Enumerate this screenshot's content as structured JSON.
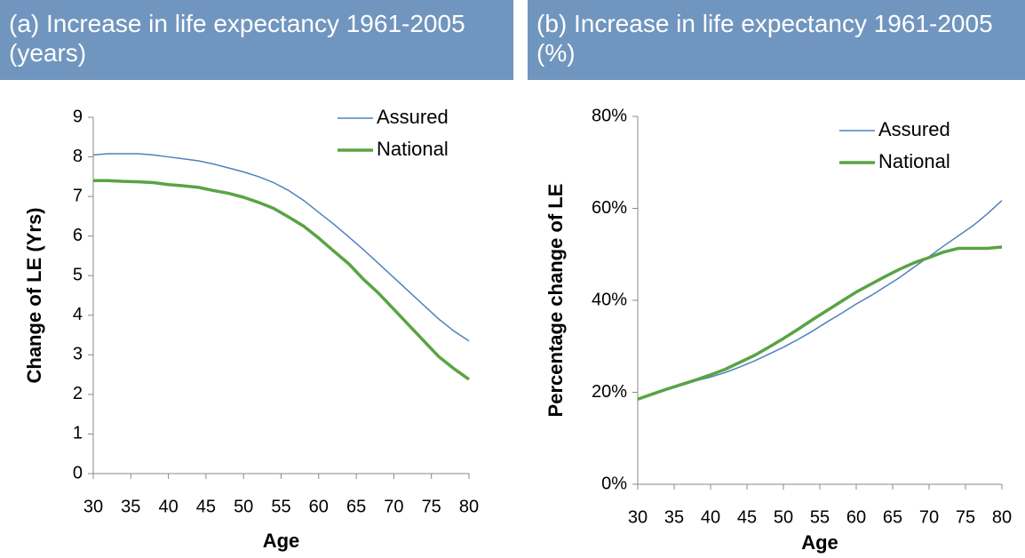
{
  "chart_data": [
    {
      "type": "line",
      "title": "(a) Increase in life expectancy 1961-2005 (years)",
      "x_label": "Age",
      "y_label": "Change of LE (Yrs)",
      "x": [
        30,
        32,
        34,
        36,
        38,
        40,
        42,
        44,
        46,
        48,
        50,
        52,
        54,
        56,
        58,
        60,
        62,
        64,
        66,
        68,
        70,
        72,
        74,
        76,
        78,
        80
      ],
      "series": [
        {
          "name": "Assured",
          "color": "#4f81bd",
          "values": [
            8.05,
            8.08,
            8.08,
            8.08,
            8.05,
            8.0,
            7.95,
            7.9,
            7.82,
            7.72,
            7.62,
            7.5,
            7.35,
            7.15,
            6.9,
            6.6,
            6.3,
            5.98,
            5.65,
            5.3,
            4.95,
            4.6,
            4.25,
            3.9,
            3.6,
            3.35
          ]
        },
        {
          "name": "National",
          "color": "#5aa344",
          "values": [
            7.4,
            7.4,
            7.38,
            7.37,
            7.35,
            7.3,
            7.27,
            7.23,
            7.15,
            7.08,
            6.98,
            6.85,
            6.7,
            6.48,
            6.25,
            5.95,
            5.62,
            5.3,
            4.9,
            4.55,
            4.15,
            3.75,
            3.35,
            2.95,
            2.65,
            2.38
          ]
        }
      ],
      "xlim": [
        30,
        80
      ],
      "xticks": [
        30,
        35,
        40,
        45,
        50,
        55,
        60,
        65,
        70,
        75,
        80
      ],
      "ylim": [
        0,
        9
      ],
      "yticks": [
        0,
        1,
        2,
        3,
        4,
        5,
        6,
        7,
        8,
        9
      ],
      "grid": false,
      "legend": "upper right"
    },
    {
      "type": "line",
      "title": "(b) Increase in life expectancy 1961-2005 (%)",
      "x_label": "Age",
      "y_label": "Percentage change of LE",
      "x": [
        30,
        32,
        34,
        36,
        38,
        40,
        42,
        44,
        46,
        48,
        50,
        52,
        54,
        56,
        58,
        60,
        62,
        64,
        66,
        68,
        70,
        72,
        74,
        76,
        78,
        80
      ],
      "series": [
        {
          "name": "Assured",
          "color": "#4f81bd",
          "values": [
            18.5,
            19.5,
            20.5,
            21.5,
            22.5,
            23.3,
            24.3,
            25.5,
            26.8,
            28.3,
            29.8,
            31.5,
            33.3,
            35.3,
            37.2,
            39.2,
            41.0,
            43.0,
            45.0,
            47.3,
            49.5,
            51.8,
            54.0,
            56.2,
            58.8,
            61.7
          ]
        },
        {
          "name": "National",
          "color": "#5aa344",
          "values": [
            18.5,
            19.6,
            20.7,
            21.7,
            22.7,
            23.8,
            25.0,
            26.5,
            28.0,
            29.8,
            31.7,
            33.7,
            35.8,
            37.8,
            39.8,
            41.8,
            43.5,
            45.2,
            46.8,
            48.2,
            49.3,
            50.5,
            51.3,
            51.3,
            51.3,
            51.6
          ]
        }
      ],
      "xlim": [
        30,
        80
      ],
      "xticks": [
        30,
        35,
        40,
        45,
        50,
        55,
        60,
        65,
        70,
        75,
        80
      ],
      "ylim": [
        0,
        80
      ],
      "yticks": [
        {
          "value": 0,
          "label": "0%"
        },
        {
          "value": 20,
          "label": "20%"
        },
        {
          "value": 40,
          "label": "40%"
        },
        {
          "value": 60,
          "label": "60%"
        },
        {
          "value": 80,
          "label": "80%"
        }
      ],
      "grid": false,
      "legend": "upper right"
    }
  ]
}
